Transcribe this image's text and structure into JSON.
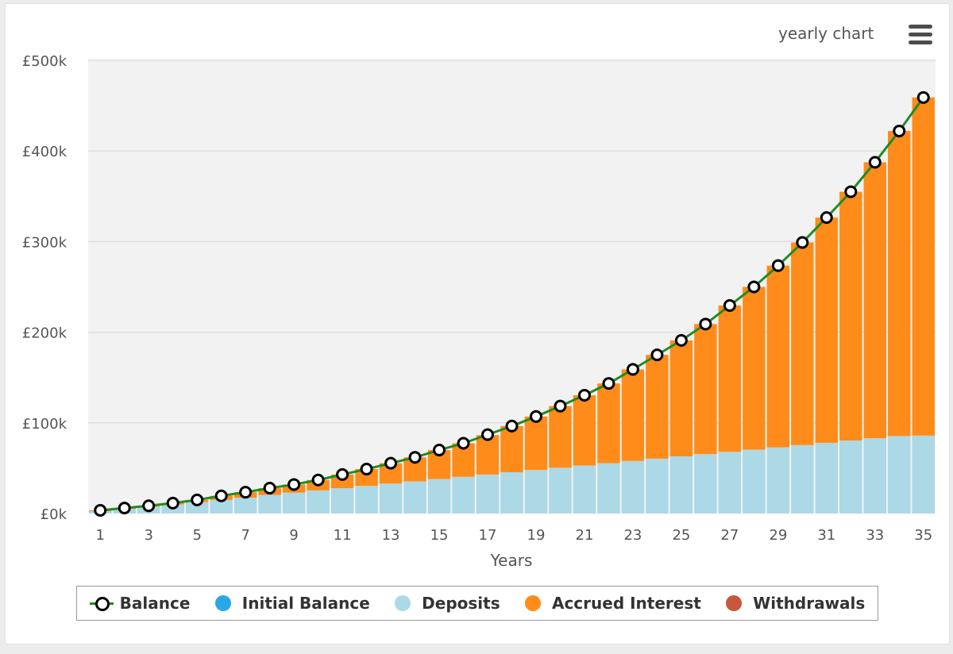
{
  "header": {
    "title": "yearly chart"
  },
  "colors": {
    "balance_line": "#228b22",
    "balance_marker_fill": "#ffffff",
    "balance_marker_stroke": "#000000",
    "initial_balance": "#29a8e8",
    "deposits": "#add8e6",
    "accrued_interest": "#ff8c1a",
    "withdrawals": "#c9573c",
    "plot_bg": "#f2f2f2",
    "grid": "#dedede"
  },
  "legend": {
    "items": [
      {
        "key": "balance",
        "label": "Balance"
      },
      {
        "key": "initial_balance",
        "label": "Initial Balance"
      },
      {
        "key": "deposits",
        "label": "Deposits"
      },
      {
        "key": "accrued_interest",
        "label": "Accrued Interest"
      },
      {
        "key": "withdrawals",
        "label": "Withdrawals"
      }
    ]
  },
  "chart_data": {
    "type": "bar",
    "stacked": true,
    "xlabel": "Years",
    "ylabel": "",
    "ylim": [
      0,
      500000
    ],
    "yticks": [
      {
        "value": 0,
        "label": "£0k"
      },
      {
        "value": 100000,
        "label": "£100k"
      },
      {
        "value": 200000,
        "label": "£200k"
      },
      {
        "value": 300000,
        "label": "£300k"
      },
      {
        "value": 400000,
        "label": "£400k"
      },
      {
        "value": 500000,
        "label": "£500k"
      }
    ],
    "xtick_labels": [
      "1",
      "3",
      "5",
      "7",
      "9",
      "11",
      "13",
      "15",
      "17",
      "19",
      "21",
      "23",
      "25",
      "27",
      "29",
      "31",
      "33",
      "35"
    ],
    "grid": true,
    "legend_position": "bottom",
    "categories": [
      1,
      2,
      3,
      4,
      5,
      6,
      7,
      8,
      9,
      10,
      11,
      12,
      13,
      14,
      15,
      16,
      17,
      18,
      19,
      20,
      21,
      22,
      23,
      24,
      25,
      26,
      27,
      28,
      29,
      30,
      31,
      32,
      33,
      34,
      35
    ],
    "series": [
      {
        "name": "Deposits",
        "kind": "bar",
        "values": [
          2500,
          5000,
          7500,
          10000,
          12500,
          15000,
          17500,
          20500,
          23000,
          25500,
          28000,
          30500,
          33000,
          35500,
          38000,
          40500,
          43000,
          45500,
          48000,
          50500,
          53000,
          55500,
          58000,
          60500,
          63000,
          65500,
          68000,
          70500,
          73000,
          75500,
          78000,
          80500,
          83000,
          85500,
          86000
        ]
      },
      {
        "name": "Accrued Interest",
        "kind": "bar",
        "values": [
          1000,
          1000,
          1000,
          1500,
          2500,
          4500,
          6000,
          7500,
          9000,
          11500,
          15000,
          18500,
          22500,
          26500,
          32000,
          37000,
          43500,
          51000,
          59000,
          68000,
          77500,
          88000,
          101000,
          114500,
          128000,
          143500,
          161500,
          179500,
          200500,
          223500,
          248500,
          274500,
          304500,
          336500,
          373000
        ]
      },
      {
        "name": "Balance",
        "kind": "line",
        "values": [
          3500,
          6000,
          8500,
          11500,
          15000,
          19500,
          23500,
          28000,
          32000,
          37000,
          43000,
          49000,
          55500,
          62000,
          70000,
          77500,
          87000,
          96500,
          107000,
          118500,
          130500,
          143500,
          159000,
          175000,
          191000,
          209000,
          229500,
          250000,
          273500,
          299000,
          326500,
          355000,
          387500,
          422000,
          459000
        ]
      }
    ]
  }
}
